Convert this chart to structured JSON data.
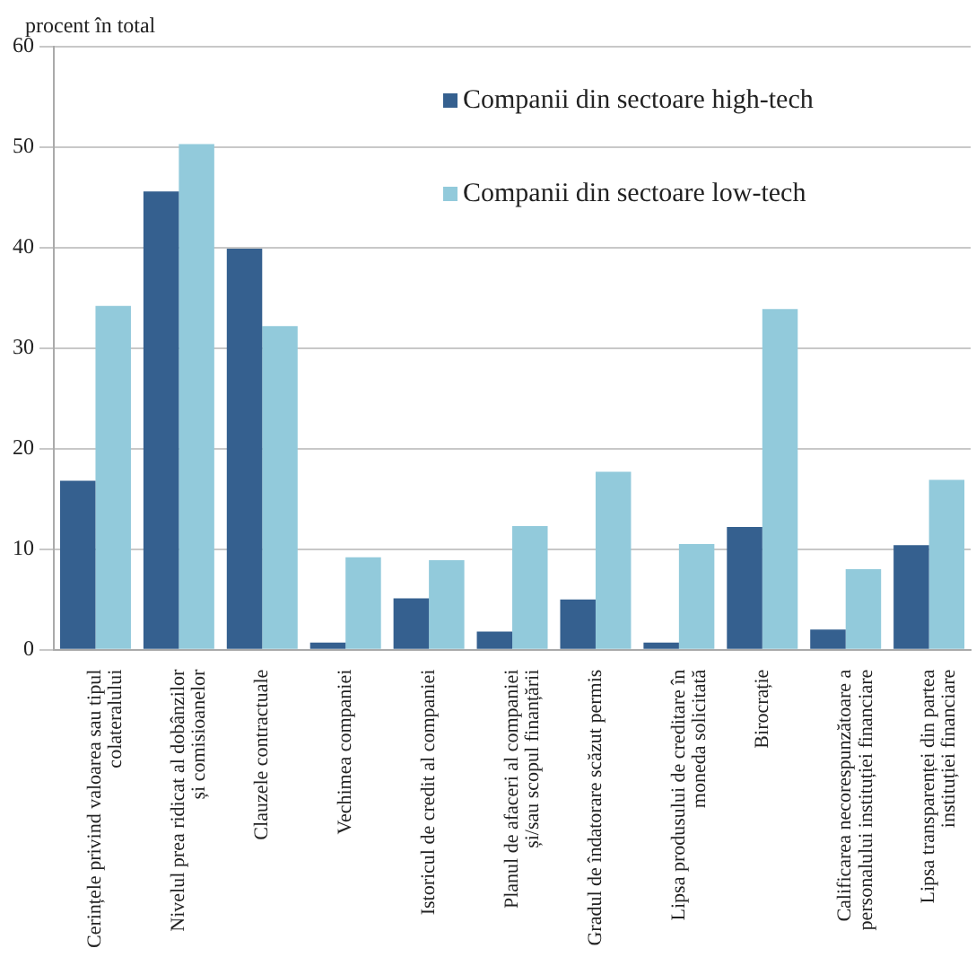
{
  "chart_data": {
    "type": "bar",
    "ylabel": "procent în total",
    "categories": [
      "Cerințele privind valoarea sau tipul colateralului",
      "Nivelul prea ridicat al dobânzilor și comisioanelor",
      "Clauzele contractuale",
      "Vechimea companiei",
      "Istoricul de credit al companiei",
      "Planul de afaceri al companiei și/sau scopul finanțării",
      "Gradul de îndatorare scăzut permis",
      "Lipsa produsului de creditare în moneda solicitată",
      "Birocrație",
      "Calificarea necorespunzătoare a personalului instituției financiare",
      "Lipsa transparenței din partea instituției financiare"
    ],
    "series": [
      {
        "name": "Companii din sectoare high-tech",
        "color": "#35608f",
        "values": [
          16.8,
          45.6,
          39.9,
          0.7,
          5.1,
          1.8,
          5.0,
          0.7,
          12.2,
          2.0,
          10.4
        ]
      },
      {
        "name": "Companii din sectoare low-tech",
        "color": "#92cadb",
        "values": [
          34.2,
          50.3,
          32.2,
          9.2,
          8.9,
          12.3,
          17.7,
          10.5,
          33.9,
          8.0,
          16.9
        ]
      }
    ],
    "ylim": [
      0,
      60
    ],
    "yticks": [
      0,
      10,
      20,
      30,
      40,
      50,
      60
    ],
    "grid": "y",
    "legend": "top right"
  }
}
